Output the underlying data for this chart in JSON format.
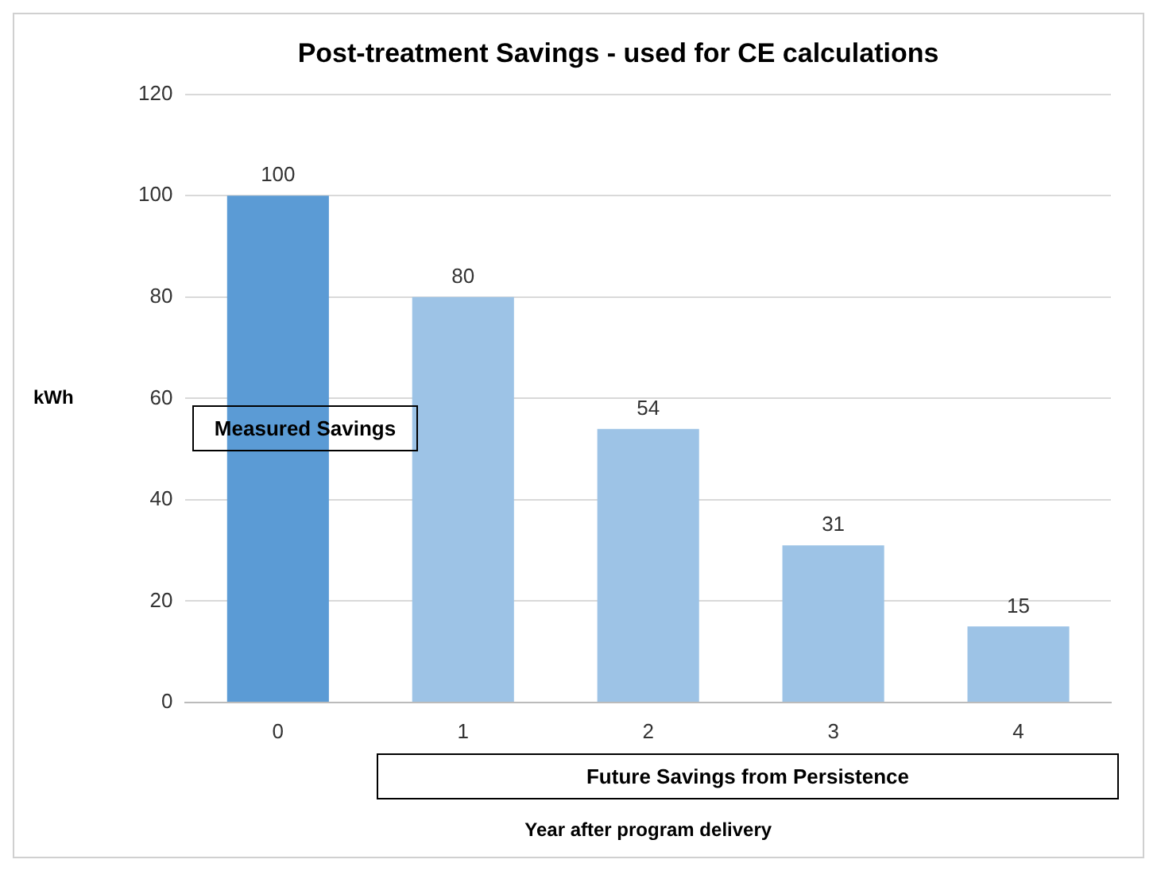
{
  "chart_data": {
    "type": "bar",
    "title": "Post-treatment Savings - used for CE calculations",
    "xlabel": "Year after program delivery",
    "ylabel": "kWh",
    "categories": [
      "0",
      "1",
      "2",
      "3",
      "4"
    ],
    "series": [
      {
        "color": "#5b9bd5",
        "values": [
          100,
          null,
          null,
          null,
          null
        ]
      },
      {
        "color": "#9dc3e6",
        "values": [
          null,
          80,
          54,
          31,
          15
        ]
      }
    ],
    "ylim": [
      0,
      120
    ],
    "yticks": [
      0,
      20,
      40,
      60,
      80,
      100,
      120
    ],
    "grid": "y",
    "data_labels": true,
    "legend": false,
    "annotations": [
      "Measured Savings",
      "Future Savings from Persistence"
    ]
  }
}
